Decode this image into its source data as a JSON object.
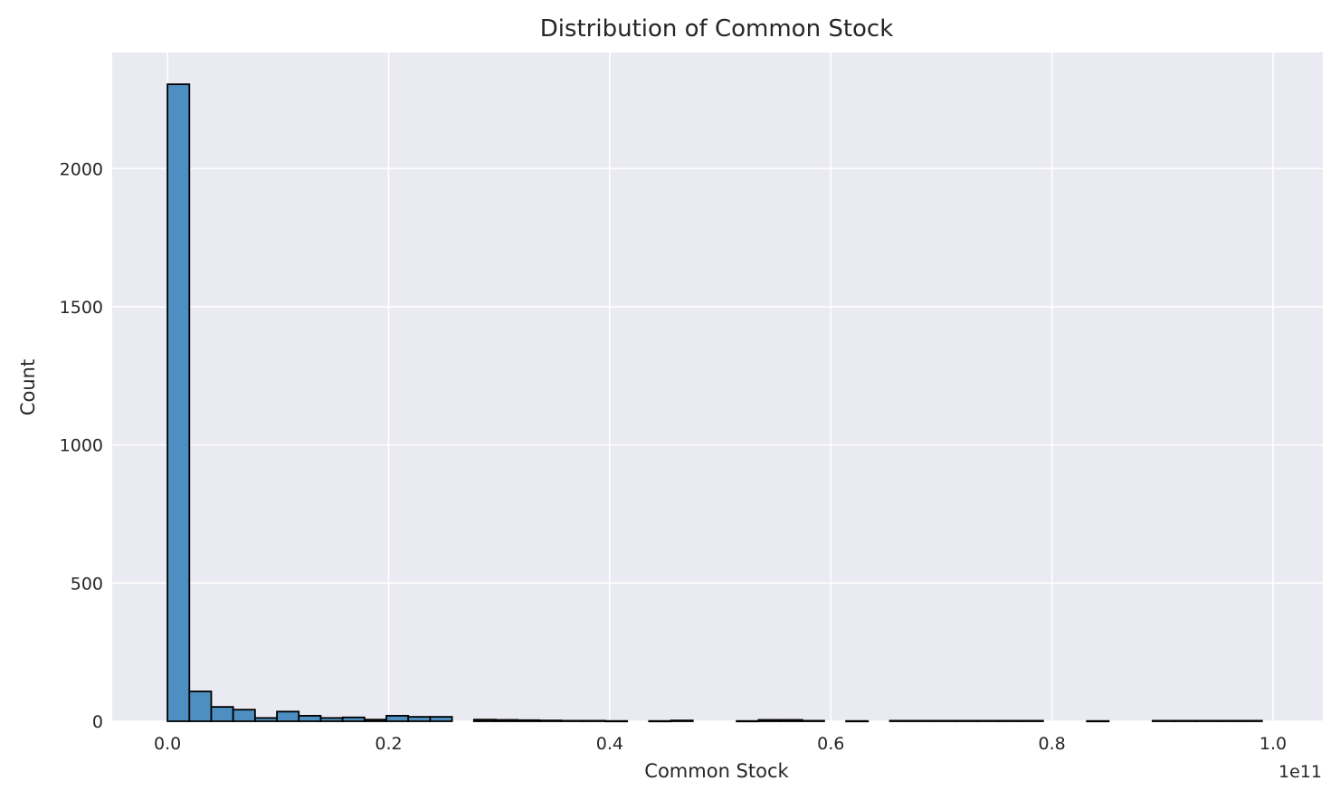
{
  "chart_data": {
    "type": "bar",
    "title": "Distribution of Common Stock",
    "xlabel": "Common Stock",
    "ylabel": "Count",
    "x_offset_label": "1e11",
    "xlim": [
      -0.05,
      1.045
    ],
    "ylim": [
      0,
      2420
    ],
    "x_ticks": [
      0.0,
      0.2,
      0.4,
      0.6,
      0.8,
      1.0
    ],
    "x_tick_labels": [
      "0.0",
      "0.2",
      "0.4",
      "0.6",
      "0.8",
      "1.0"
    ],
    "y_ticks": [
      0,
      500,
      1000,
      1500,
      2000
    ],
    "y_tick_labels": [
      "0",
      "500",
      "1000",
      "1500",
      "2000"
    ],
    "bin_start": 0.0,
    "bin_width": 0.0198,
    "counts": [
      2305,
      108,
      52,
      42,
      12,
      35,
      20,
      12,
      14,
      6,
      20,
      16,
      16,
      0,
      6,
      5,
      4,
      3,
      2,
      2,
      1,
      0,
      1,
      3,
      0,
      0,
      1,
      5,
      5,
      2,
      0,
      1,
      0,
      2,
      2,
      2,
      2,
      2,
      2,
      2,
      0,
      0,
      1,
      0,
      0,
      2,
      2,
      2,
      2,
      2
    ],
    "grid": true,
    "background_color": "#eaeaf2",
    "bar_color": "#4c8fc0",
    "edge_color": "#000000"
  }
}
